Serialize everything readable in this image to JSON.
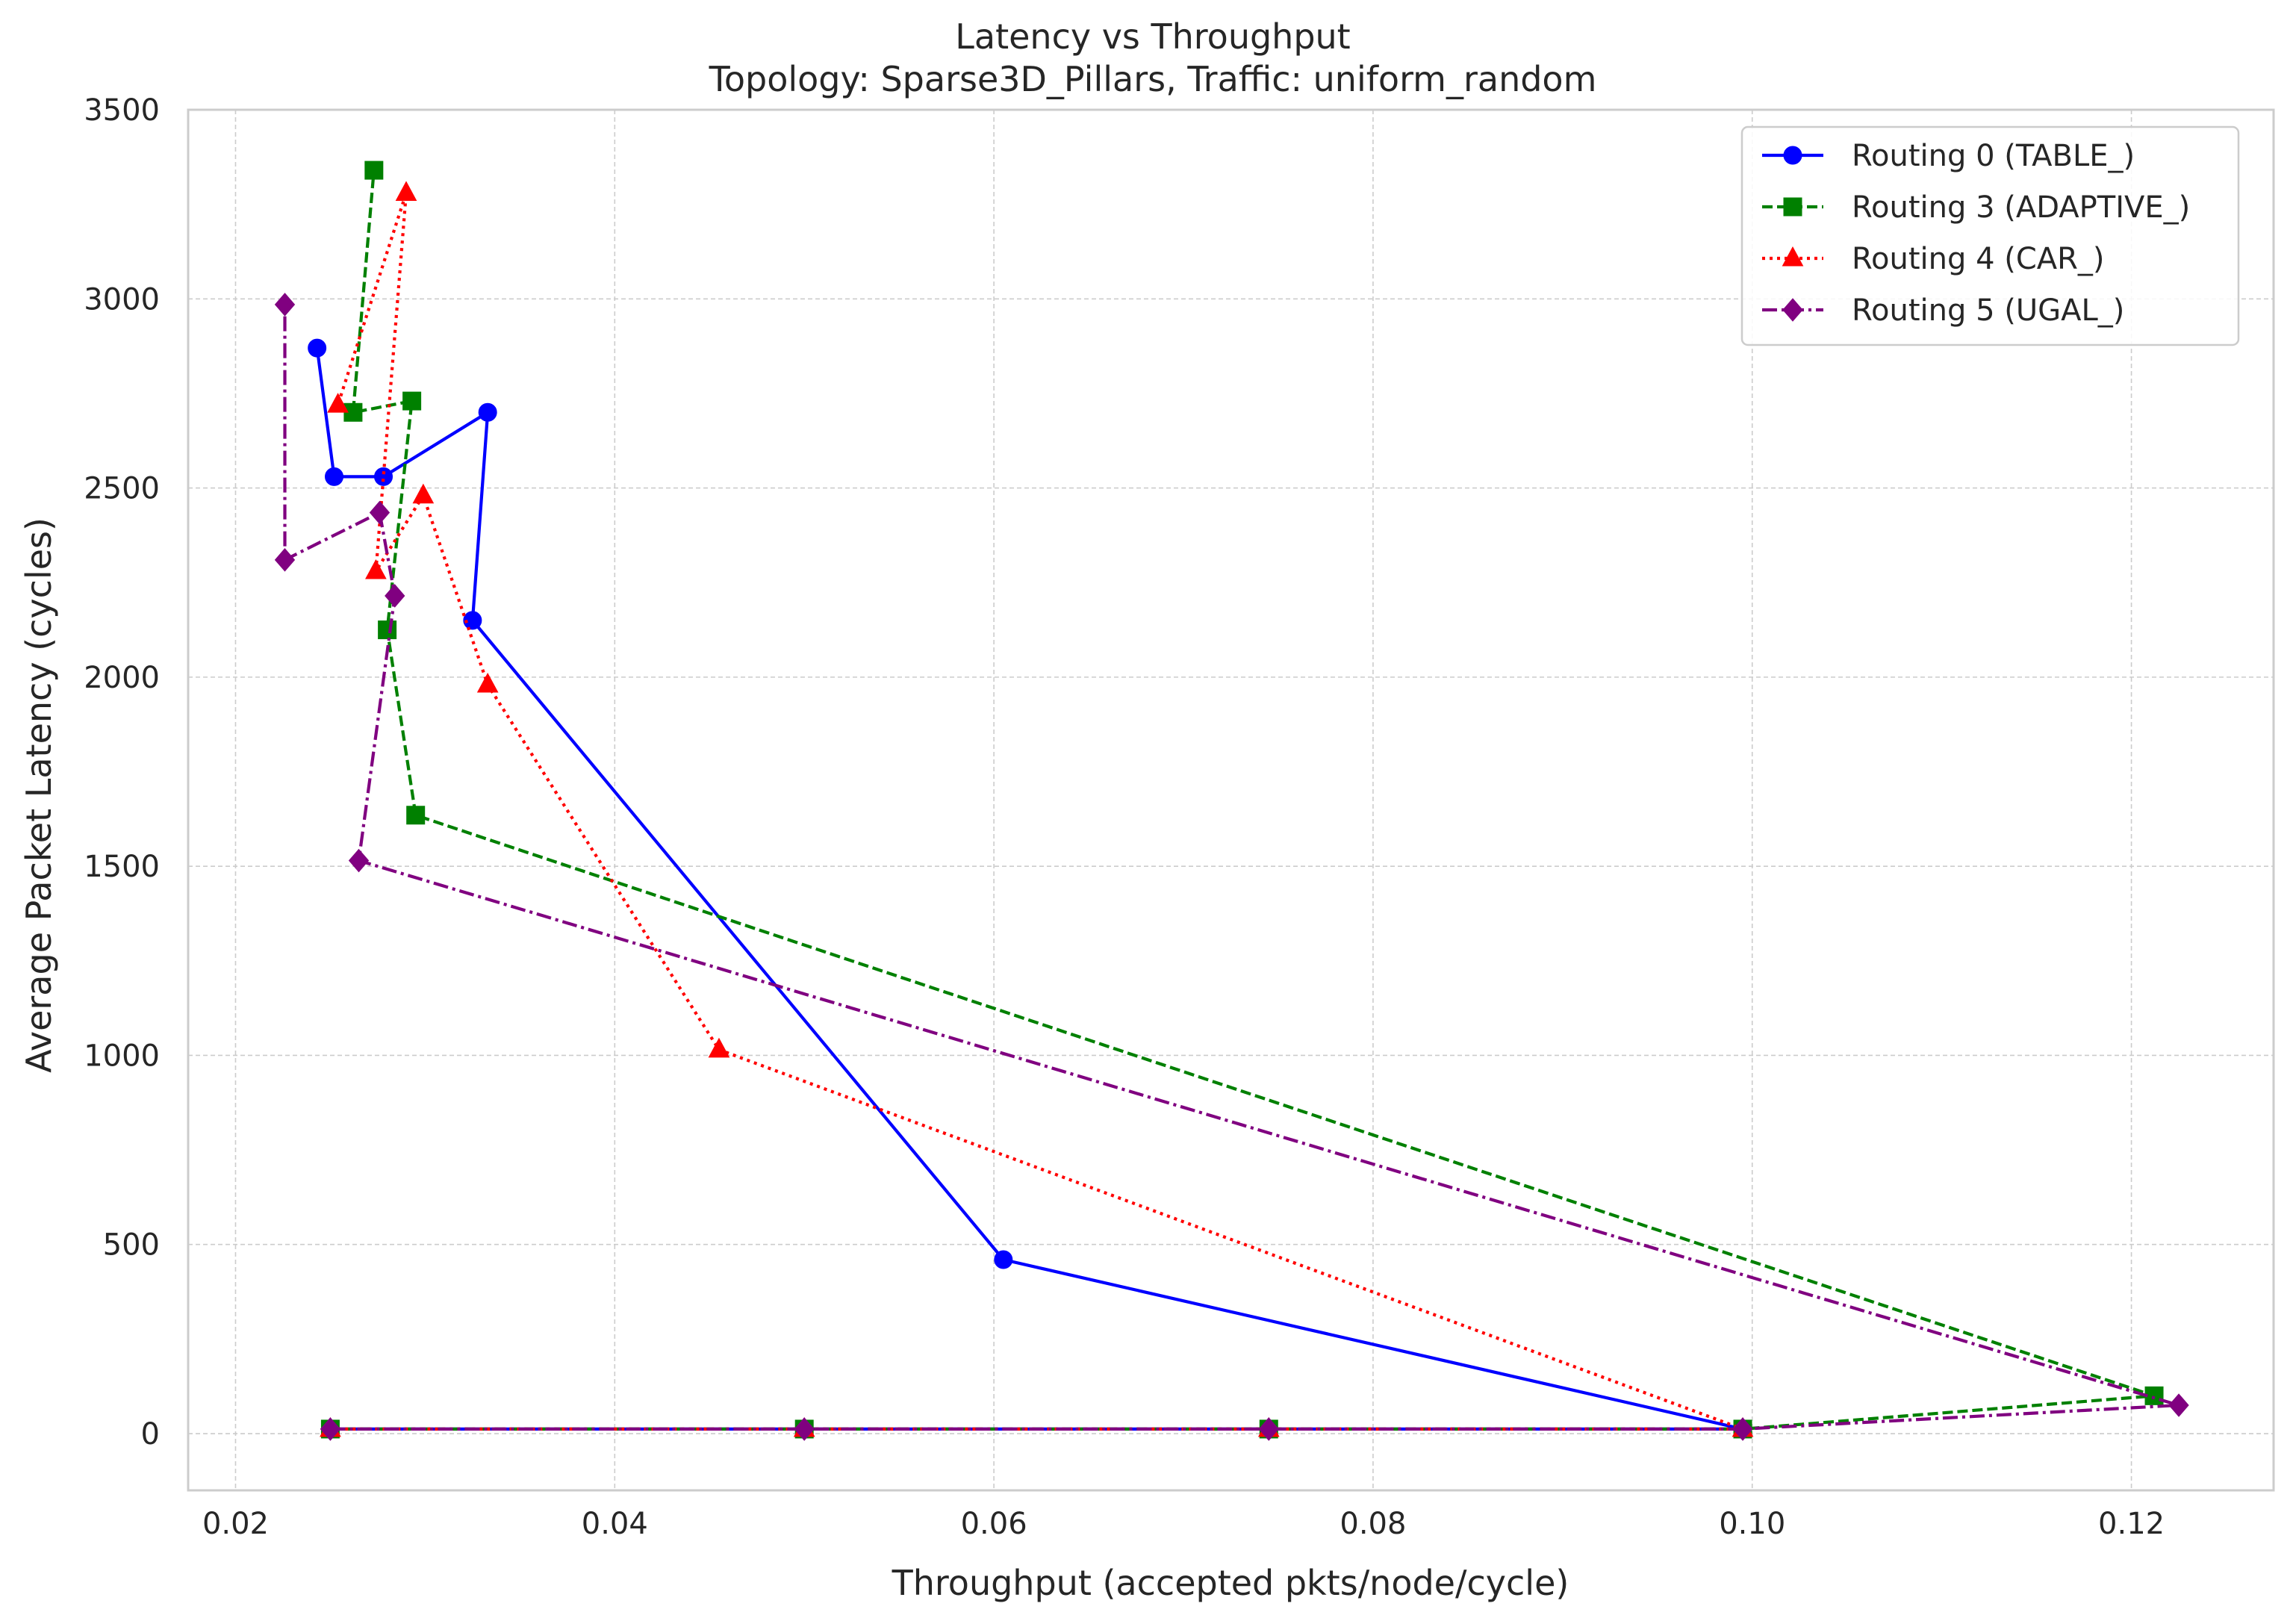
{
  "chart_data": {
    "type": "line",
    "title": "Latency vs Throughput",
    "subtitle": "Topology: Sparse3D_Pillars, Traffic: uniform_random",
    "xlabel": "Throughput (accepted pkts/node/cycle)",
    "ylabel": "Average Packet Latency (cycles)",
    "xlim": [
      0.0175,
      0.1275
    ],
    "ylim": [
      -150,
      3500
    ],
    "xticks": [
      0.02,
      0.04,
      0.06,
      0.08,
      0.1,
      0.12
    ],
    "xtick_labels": [
      "0.02",
      "0.04",
      "0.06",
      "0.08",
      "0.10",
      "0.12"
    ],
    "yticks": [
      0,
      500,
      1000,
      1500,
      2000,
      2500,
      3000,
      3500
    ],
    "ytick_labels": [
      "0",
      "500",
      "1000",
      "1500",
      "2000",
      "2500",
      "3000",
      "3500"
    ],
    "grid": true,
    "legend_position": "top-right",
    "series": [
      {
        "name": "Routing 0 (TABLE_)",
        "color": "#0000ff",
        "linestyle": "solid",
        "marker": "circle",
        "points": [
          [
            0.025,
            12
          ],
          [
            0.05,
            12
          ],
          [
            0.0745,
            12
          ],
          [
            0.0995,
            12
          ],
          [
            0.0605,
            460
          ],
          [
            0.0325,
            2150
          ],
          [
            0.0333,
            2700
          ],
          [
            0.0278,
            2530
          ],
          [
            0.0252,
            2530
          ],
          [
            0.0243,
            2870
          ]
        ]
      },
      {
        "name": "Routing 3 (ADAPTIVE_)",
        "color": "#008000",
        "linestyle": "dashed",
        "marker": "square",
        "points": [
          [
            0.025,
            12
          ],
          [
            0.05,
            12
          ],
          [
            0.0745,
            12
          ],
          [
            0.0995,
            12
          ],
          [
            0.1212,
            100
          ],
          [
            0.0295,
            1635
          ],
          [
            0.028,
            2125
          ],
          [
            0.0293,
            2730
          ],
          [
            0.0262,
            2700
          ],
          [
            0.0273,
            3340
          ]
        ]
      },
      {
        "name": "Routing 4 (CAR_)",
        "color": "#ff0000",
        "linestyle": "dotted",
        "marker": "triangle",
        "points": [
          [
            0.025,
            12
          ],
          [
            0.05,
            12
          ],
          [
            0.0745,
            12
          ],
          [
            0.0995,
            12
          ],
          [
            0.0455,
            1015
          ],
          [
            0.0333,
            1980
          ],
          [
            0.0299,
            2480
          ],
          [
            0.0274,
            2280
          ],
          [
            0.029,
            3280
          ],
          [
            0.0254,
            2720
          ]
        ]
      },
      {
        "name": "Routing 5 (UGAL_)",
        "color": "#800080",
        "linestyle": "dashdot",
        "marker": "diamond",
        "points": [
          [
            0.025,
            12
          ],
          [
            0.05,
            12
          ],
          [
            0.0745,
            12
          ],
          [
            0.0995,
            12
          ],
          [
            0.1225,
            75
          ],
          [
            0.0265,
            1515
          ],
          [
            0.0284,
            2215
          ],
          [
            0.0276,
            2435
          ],
          [
            0.0226,
            2310
          ],
          [
            0.0226,
            2985
          ]
        ]
      }
    ]
  }
}
